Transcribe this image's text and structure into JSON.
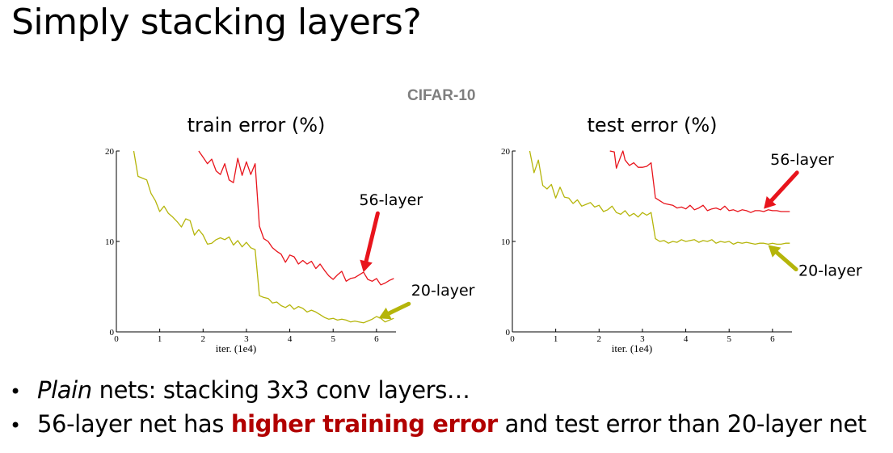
{
  "slide": {
    "title": "Simply stacking layers?",
    "figure_title": "CIFAR-10"
  },
  "bullets": [
    {
      "italic": "Plain",
      "rest": " nets: stacking 3x3 conv layers…"
    },
    {
      "pre": "56-layer net has ",
      "highlight": "higher training error",
      "post": " and test error than 20-layer net"
    }
  ],
  "colors": {
    "deep": "#e8141c",
    "shallow": "#b5b50a",
    "highlight": "#b20000",
    "figure_title": "#7f7f7f"
  },
  "chart_data": [
    {
      "type": "line",
      "title": "train error (%)",
      "xlabel": "iter. (1e4)",
      "ylabel": "",
      "xlim": [
        0,
        6.45
      ],
      "ylim": [
        0,
        20
      ],
      "x_ticks": [
        0,
        1,
        2,
        3,
        4,
        5,
        6
      ],
      "y_ticks": [
        0,
        10,
        20
      ],
      "grid": false,
      "series": [
        {
          "name": "56-layer",
          "color_key": "deep",
          "x": [
            1.9,
            2.0,
            2.1,
            2.2,
            2.3,
            2.4,
            2.5,
            2.6,
            2.7,
            2.8,
            2.9,
            3.0,
            3.1,
            3.2,
            3.3,
            3.4,
            3.5,
            3.6,
            3.7,
            3.8,
            3.9,
            4.0,
            4.1,
            4.2,
            4.3,
            4.4,
            4.5,
            4.6,
            4.7,
            4.8,
            4.9,
            5.0,
            5.1,
            5.2,
            5.3,
            5.4,
            5.5,
            5.6,
            5.7,
            5.8,
            5.9,
            6.0,
            6.1,
            6.2,
            6.3,
            6.4
          ],
          "y": [
            20.0,
            19.3,
            18.6,
            19.1,
            17.8,
            17.4,
            18.6,
            16.8,
            16.5,
            19.2,
            17.3,
            18.8,
            17.4,
            18.6,
            11.7,
            10.3,
            10.0,
            9.3,
            8.9,
            8.6,
            7.7,
            8.5,
            8.3,
            7.5,
            7.9,
            7.5,
            7.8,
            7.0,
            7.5,
            6.8,
            6.2,
            5.8,
            6.3,
            6.7,
            5.6,
            5.9,
            6.0,
            6.3,
            6.6,
            5.8,
            5.6,
            5.9,
            5.2,
            5.4,
            5.7,
            5.9
          ]
        },
        {
          "name": "20-layer",
          "color_key": "shallow",
          "x": [
            0.4,
            0.5,
            0.6,
            0.7,
            0.8,
            0.9,
            1.0,
            1.1,
            1.2,
            1.3,
            1.4,
            1.5,
            1.6,
            1.7,
            1.8,
            1.9,
            2.0,
            2.1,
            2.2,
            2.3,
            2.4,
            2.5,
            2.6,
            2.7,
            2.8,
            2.9,
            3.0,
            3.1,
            3.2,
            3.3,
            3.4,
            3.5,
            3.6,
            3.7,
            3.8,
            3.9,
            4.0,
            4.1,
            4.2,
            4.3,
            4.4,
            4.5,
            4.6,
            4.7,
            4.8,
            4.9,
            5.0,
            5.1,
            5.2,
            5.3,
            5.4,
            5.5,
            5.6,
            5.7,
            5.8,
            5.9,
            6.0,
            6.1,
            6.2,
            6.3,
            6.4
          ],
          "y": [
            20.0,
            17.2,
            17.0,
            16.8,
            15.3,
            14.5,
            13.3,
            13.9,
            13.1,
            12.7,
            12.2,
            11.6,
            12.5,
            12.3,
            10.7,
            11.3,
            10.7,
            9.7,
            9.8,
            10.2,
            10.4,
            10.2,
            10.5,
            9.6,
            10.1,
            9.4,
            9.9,
            9.3,
            9.1,
            4.0,
            3.8,
            3.7,
            3.2,
            3.3,
            2.9,
            2.7,
            3.0,
            2.5,
            2.8,
            2.6,
            2.2,
            2.4,
            2.2,
            1.9,
            1.6,
            1.4,
            1.5,
            1.3,
            1.4,
            1.3,
            1.1,
            1.2,
            1.1,
            1.0,
            1.2,
            1.4,
            1.7,
            1.5,
            1.1,
            1.3,
            1.5
          ]
        }
      ],
      "annotations": [
        {
          "text": "56-layer",
          "series": "56-layer",
          "at": [
            5.7,
            6.6
          ],
          "label_at": [
            5.6,
            14.0
          ]
        },
        {
          "text": "20-layer",
          "series": "20-layer",
          "at": [
            6.05,
            1.5
          ],
          "label_at": [
            6.8,
            4.0
          ]
        }
      ]
    },
    {
      "type": "line",
      "title": "test error (%)",
      "xlabel": "iter. (1e4)",
      "ylabel": "",
      "xlim": [
        0,
        6.45
      ],
      "ylim": [
        0,
        20
      ],
      "x_ticks": [
        0,
        1,
        2,
        3,
        4,
        5,
        6
      ],
      "y_ticks": [
        0,
        10,
        20
      ],
      "grid": false,
      "series": [
        {
          "name": "56-layer",
          "color_key": "deep",
          "x": [
            2.25,
            2.35,
            2.4,
            2.5,
            2.55,
            2.6,
            2.7,
            2.8,
            2.9,
            3.0,
            3.1,
            3.2,
            3.3,
            3.4,
            3.5,
            3.6,
            3.7,
            3.8,
            3.9,
            4.0,
            4.1,
            4.2,
            4.3,
            4.4,
            4.5,
            4.6,
            4.7,
            4.8,
            4.9,
            5.0,
            5.1,
            5.2,
            5.3,
            5.4,
            5.5,
            5.6,
            5.7,
            5.8,
            5.9,
            6.0,
            6.1,
            6.2,
            6.3,
            6.4
          ],
          "y": [
            20.0,
            19.9,
            18.1,
            19.4,
            20.0,
            19.0,
            18.4,
            18.7,
            18.2,
            18.2,
            18.3,
            18.7,
            14.8,
            14.5,
            14.2,
            14.1,
            14.0,
            13.7,
            13.8,
            13.6,
            14.0,
            13.5,
            13.7,
            14.0,
            13.4,
            13.6,
            13.7,
            13.5,
            13.9,
            13.4,
            13.5,
            13.3,
            13.5,
            13.4,
            13.2,
            13.4,
            13.4,
            13.3,
            13.5,
            13.4,
            13.4,
            13.3,
            13.3,
            13.3
          ]
        },
        {
          "name": "20-layer",
          "color_key": "shallow",
          "x": [
            0.4,
            0.5,
            0.6,
            0.7,
            0.8,
            0.9,
            1.0,
            1.1,
            1.2,
            1.3,
            1.4,
            1.5,
            1.6,
            1.7,
            1.8,
            1.9,
            2.0,
            2.1,
            2.2,
            2.3,
            2.4,
            2.5,
            2.6,
            2.7,
            2.8,
            2.9,
            3.0,
            3.1,
            3.2,
            3.3,
            3.4,
            3.5,
            3.6,
            3.7,
            3.8,
            3.9,
            4.0,
            4.1,
            4.2,
            4.3,
            4.4,
            4.5,
            4.6,
            4.7,
            4.8,
            4.9,
            5.0,
            5.1,
            5.2,
            5.3,
            5.4,
            5.5,
            5.6,
            5.7,
            5.8,
            5.9,
            6.0,
            6.1,
            6.2,
            6.3,
            6.4
          ],
          "y": [
            20.0,
            17.6,
            19.0,
            16.2,
            15.8,
            16.3,
            14.8,
            16.0,
            14.9,
            14.8,
            14.2,
            14.6,
            13.9,
            14.1,
            14.3,
            13.8,
            14.0,
            13.3,
            13.5,
            13.9,
            13.2,
            13.0,
            13.4,
            12.8,
            13.1,
            12.7,
            13.2,
            12.9,
            13.2,
            10.3,
            10.0,
            10.1,
            9.8,
            10.0,
            9.9,
            10.2,
            10.0,
            10.1,
            10.2,
            9.9,
            10.1,
            10.0,
            10.2,
            9.8,
            10.0,
            9.9,
            10.0,
            9.7,
            9.9,
            9.8,
            9.9,
            9.8,
            9.7,
            9.8,
            9.8,
            9.7,
            9.8,
            9.7,
            9.7,
            9.8,
            9.8
          ]
        }
      ],
      "annotations": [
        {
          "text": "56-layer",
          "series": "56-layer",
          "at": [
            5.8,
            13.6
          ],
          "label_at": [
            5.95,
            18.5
          ]
        },
        {
          "text": "20-layer",
          "series": "20-layer",
          "at": [
            5.9,
            9.6
          ],
          "label_at": [
            6.6,
            6.2
          ]
        }
      ]
    }
  ]
}
